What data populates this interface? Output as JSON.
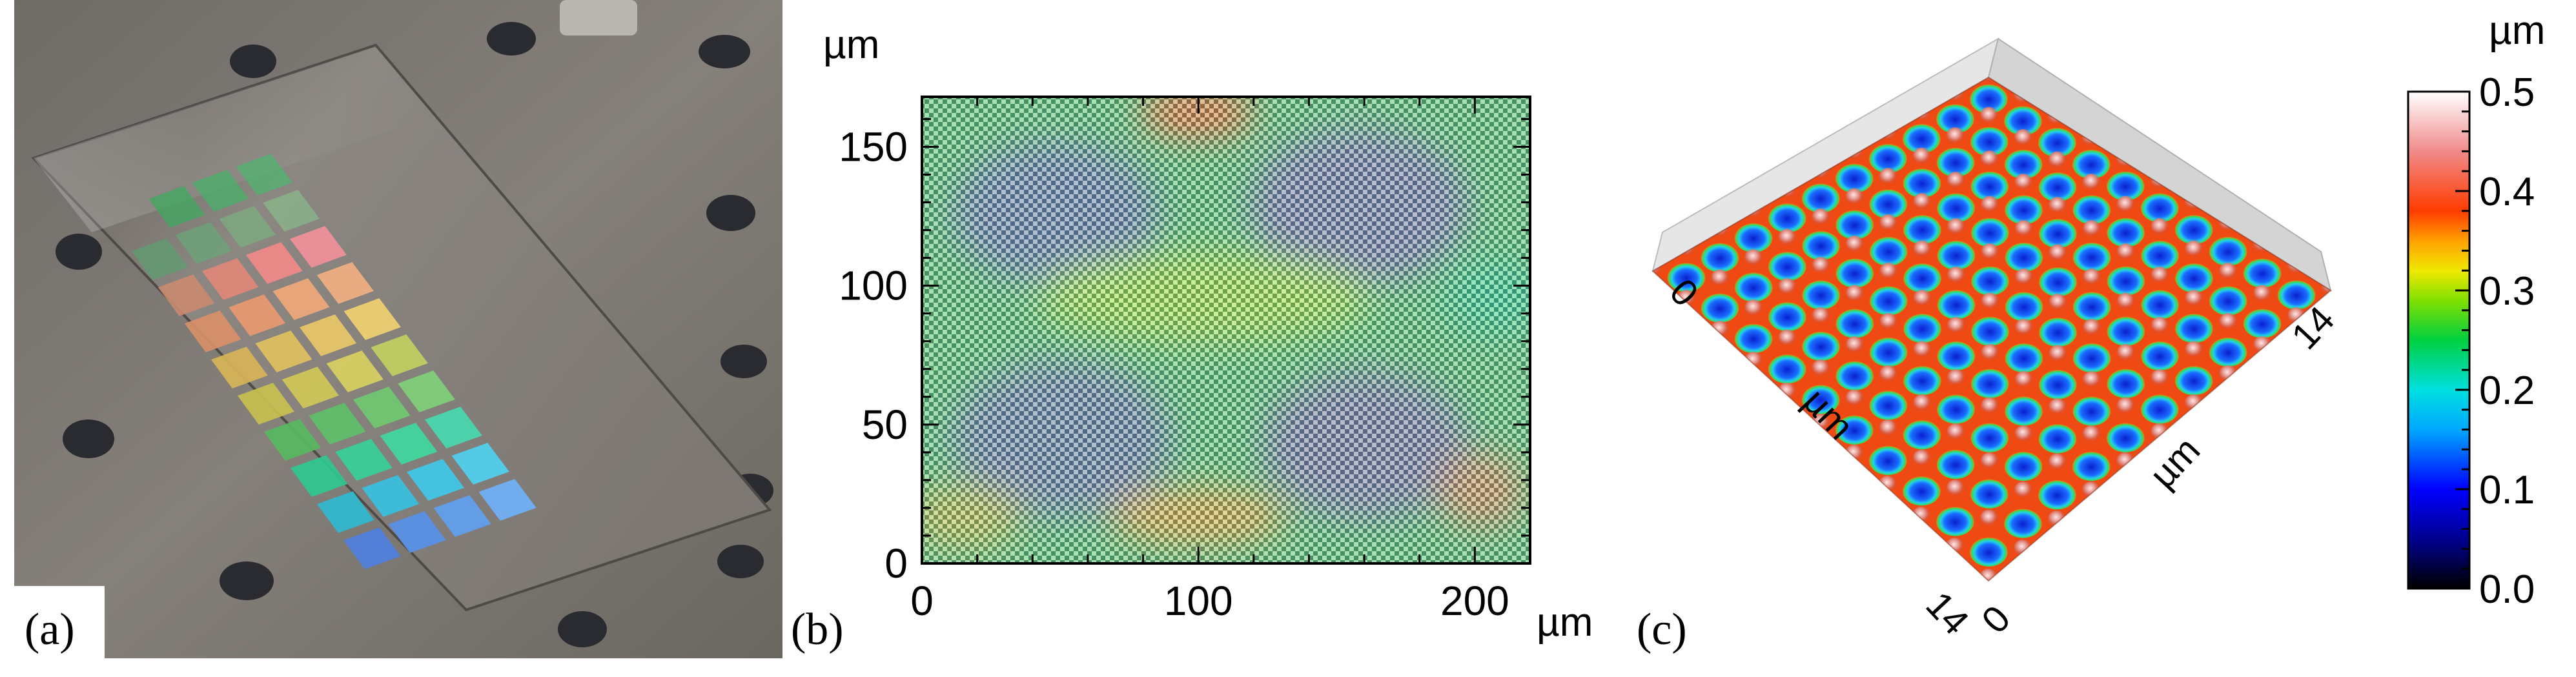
{
  "figure": {
    "panels": [
      {
        "label": "(a)",
        "content": "photo"
      },
      {
        "label": "(b)",
        "content": "optical-map"
      },
      {
        "label": "(c)",
        "content": "3d-topography"
      }
    ]
  },
  "panel_b": {
    "y_unit": "µm",
    "x_unit": "µm",
    "x_ticks": [
      "0",
      "100",
      "200"
    ],
    "y_ticks": [
      "0",
      "50",
      "100",
      "150"
    ],
    "xlim": [
      0,
      220
    ],
    "ylim": [
      0,
      168
    ]
  },
  "panel_c": {
    "axis_left_unit": "µm",
    "axis_right_unit": "µm",
    "axis_left_ticks": [
      "0",
      "14"
    ],
    "axis_right_ticks": [
      "0",
      "14"
    ]
  },
  "colorbar": {
    "unit": "µm",
    "ticks": [
      "0.0",
      "0.1",
      "0.2",
      "0.3",
      "0.4",
      "0.5"
    ],
    "range": [
      0.0,
      0.5
    ],
    "colormap": [
      "#000000",
      "#0000ff",
      "#00e0ff",
      "#00d040",
      "#e8e800",
      "#ff3c00",
      "#ffffff"
    ]
  },
  "colors": {
    "photo_background": "#7f7a75",
    "slide": "#8a8580",
    "map_base": "#5fc873"
  }
}
